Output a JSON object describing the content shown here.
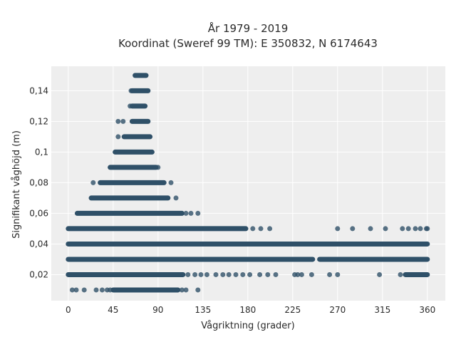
{
  "chart_data": {
    "type": "scatter",
    "title_lines": [
      "År 1979 - 2019",
      "Koordinat (Sweref 99 TM): E 350832, N 6174643"
    ],
    "xlabel": "Vågriktning (grader)",
    "ylabel": "Signifikant våghöjd (m)",
    "xlim": [
      -17,
      378
    ],
    "ylim": [
      0.003,
      0.156
    ],
    "xticks": [
      0,
      45,
      90,
      135,
      180,
      225,
      270,
      315,
      360
    ],
    "xtick_labels": [
      "0",
      "45",
      "90",
      "135",
      "180",
      "225",
      "270",
      "315",
      "360"
    ],
    "yticks": [
      0.02,
      0.04,
      0.06,
      0.08,
      0.1,
      0.12,
      0.14
    ],
    "ytick_labels": [
      "0,02",
      "0,04",
      "0,06",
      "0,08",
      "0,1",
      "0,12",
      "0,14"
    ],
    "grid": true,
    "marker_color": "#2f5068",
    "background_color": "#eeeeee",
    "series": [
      {
        "rows": [
          {
            "y": 0.15,
            "segments": [
              [
                67,
                78
              ]
            ],
            "points": []
          },
          {
            "y": 0.14,
            "segments": [
              [
                64,
                80
              ]
            ],
            "points": [
              63
            ]
          },
          {
            "y": 0.13,
            "segments": [
              [
                64,
                77
              ]
            ],
            "points": [
              62
            ]
          },
          {
            "y": 0.12,
            "segments": [
              [
                64,
                80
              ]
            ],
            "points": [
              50,
              55
            ]
          },
          {
            "y": 0.11,
            "segments": [
              [
                56,
                82
              ]
            ],
            "points": [
              50
            ]
          },
          {
            "y": 0.1,
            "segments": [
              [
                47,
                84
              ]
            ],
            "points": []
          },
          {
            "y": 0.09,
            "segments": [
              [
                42,
                88
              ]
            ],
            "points": [
              90
            ]
          },
          {
            "y": 0.08,
            "segments": [
              [
                32,
                96
              ]
            ],
            "points": [
              25,
              103
            ]
          },
          {
            "y": 0.07,
            "segments": [
              [
                23,
                100
              ]
            ],
            "points": [
              108
            ]
          },
          {
            "y": 0.06,
            "segments": [
              [
                9,
                114
              ]
            ],
            "points": [
              118,
              123,
              130
            ]
          },
          {
            "y": 0.05,
            "segments": [
              [
                0,
                178
              ]
            ],
            "points": [
              185,
              193,
              202,
              270,
              285,
              303,
              318,
              335,
              341,
              348,
              353,
              359,
              360
            ]
          },
          {
            "y": 0.04,
            "segments": [
              [
                0,
                360
              ]
            ],
            "points": []
          },
          {
            "y": 0.03,
            "segments": [
              [
                0,
                245
              ],
              [
                252,
                360
              ]
            ],
            "points": [
              262,
              272,
              281,
              290,
              297,
              305,
              315,
              324,
              334
            ]
          },
          {
            "y": 0.02,
            "segments": [
              [
                0,
                115
              ],
              [
                338,
                360
              ]
            ],
            "points": [
              120,
              127,
              133,
              139,
              148,
              155,
              161,
              168,
              175,
              182,
              192,
              200,
              208,
              227,
              230,
              234,
              244,
              262,
              270,
              312,
              333
            ]
          },
          {
            "y": 0.01,
            "segments": [
              [
                45,
                110
              ]
            ],
            "points": [
              4,
              8,
              16,
              28,
              34,
              39,
              42,
              114,
              118,
              130
            ]
          }
        ]
      }
    ]
  }
}
